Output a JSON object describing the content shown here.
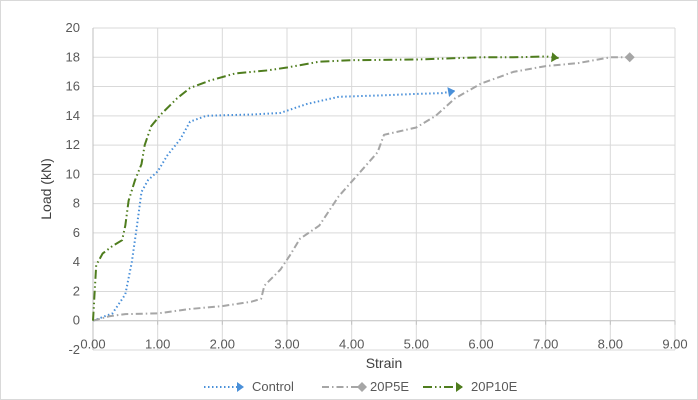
{
  "chart_data": {
    "type": "line",
    "xlabel": "Strain",
    "ylabel": "Load (kN)",
    "xlim": [
      0,
      9
    ],
    "ylim": [
      -2,
      20
    ],
    "x_ticks": [
      "0.00",
      "1.00",
      "2.00",
      "3.00",
      "4.00",
      "5.00",
      "6.00",
      "7.00",
      "8.00",
      "9.00"
    ],
    "y_ticks": [
      "-2",
      "0",
      "2",
      "4",
      "6",
      "8",
      "10",
      "12",
      "14",
      "16",
      "18",
      "20"
    ],
    "grid": "vertical and horizontal major gridlines",
    "legend_position": "bottom",
    "series": [
      {
        "name": "Control",
        "color": "#4a90d9",
        "dash": "dotted",
        "marker": "triangle-end",
        "points": [
          [
            0,
            0
          ],
          [
            0.3,
            0.5
          ],
          [
            0.5,
            1.8
          ],
          [
            0.6,
            4
          ],
          [
            0.68,
            6.5
          ],
          [
            0.75,
            8.8
          ],
          [
            0.85,
            9.6
          ],
          [
            1.0,
            10.2
          ],
          [
            1.15,
            11.3
          ],
          [
            1.35,
            12.4
          ],
          [
            1.5,
            13.6
          ],
          [
            1.75,
            14.0
          ],
          [
            2.5,
            14.1
          ],
          [
            2.9,
            14.2
          ],
          [
            3.3,
            14.8
          ],
          [
            3.8,
            15.3
          ],
          [
            4.5,
            15.4
          ],
          [
            5.0,
            15.5
          ],
          [
            5.4,
            15.55
          ],
          [
            5.6,
            15.7
          ]
        ]
      },
      {
        "name": "20P5E",
        "color": "#a6a6a6",
        "dash": "dash-dot",
        "marker": "diamond-end",
        "points": [
          [
            0,
            0
          ],
          [
            0.25,
            0.3
          ],
          [
            0.5,
            0.45
          ],
          [
            1.0,
            0.5
          ],
          [
            1.5,
            0.8
          ],
          [
            2.0,
            1.0
          ],
          [
            2.45,
            1.3
          ],
          [
            2.6,
            1.5
          ],
          [
            2.65,
            2.4
          ],
          [
            2.9,
            3.5
          ],
          [
            3.05,
            4.5
          ],
          [
            3.2,
            5.6
          ],
          [
            3.5,
            6.5
          ],
          [
            3.8,
            8.5
          ],
          [
            4.1,
            10.0
          ],
          [
            4.4,
            11.5
          ],
          [
            4.5,
            12.7
          ],
          [
            5.0,
            13.2
          ],
          [
            5.3,
            14.0
          ],
          [
            5.6,
            15.2
          ],
          [
            6.0,
            16.2
          ],
          [
            6.5,
            17.0
          ],
          [
            7.0,
            17.4
          ],
          [
            7.5,
            17.6
          ],
          [
            8.0,
            18.0
          ],
          [
            8.3,
            18.0
          ]
        ]
      },
      {
        "name": "20P10E",
        "color": "#4f7d1e",
        "dash": "dash-dot-dot",
        "marker": "arrow-end",
        "points": [
          [
            0,
            0
          ],
          [
            0.05,
            3.8
          ],
          [
            0.15,
            4.6
          ],
          [
            0.3,
            5.1
          ],
          [
            0.45,
            5.5
          ],
          [
            0.5,
            6.5
          ],
          [
            0.55,
            8.2
          ],
          [
            0.65,
            9.6
          ],
          [
            0.75,
            10.7
          ],
          [
            0.8,
            12.0
          ],
          [
            0.9,
            13.3
          ],
          [
            1.05,
            14.1
          ],
          [
            1.3,
            15.2
          ],
          [
            1.5,
            15.9
          ],
          [
            1.8,
            16.4
          ],
          [
            2.2,
            16.9
          ],
          [
            2.7,
            17.1
          ],
          [
            3.0,
            17.3
          ],
          [
            3.5,
            17.7
          ],
          [
            4.0,
            17.8
          ],
          [
            5.0,
            17.85
          ],
          [
            6.0,
            18.0
          ],
          [
            6.5,
            18.0
          ],
          [
            7.0,
            18.05
          ],
          [
            7.2,
            17.95
          ]
        ]
      }
    ]
  }
}
